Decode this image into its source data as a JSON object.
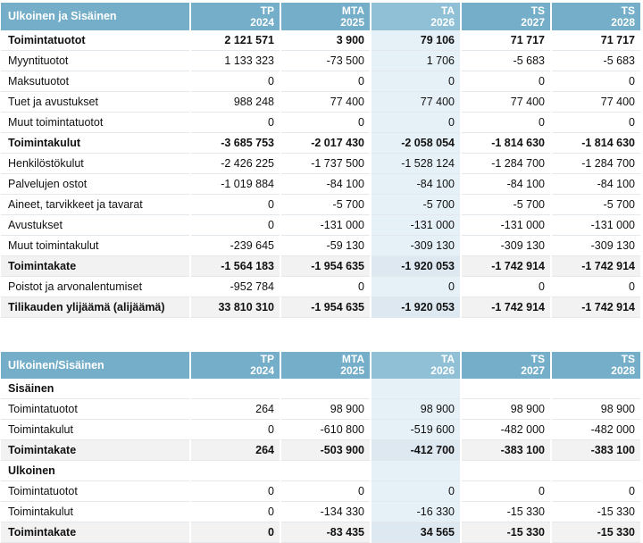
{
  "table1": {
    "header": {
      "label": "Ulkoinen ja Sisäinen",
      "columns": [
        {
          "line1": "TP",
          "line2": "2024"
        },
        {
          "line1": "MTA",
          "line2": "2025"
        },
        {
          "line1": "TA",
          "line2": "2026"
        },
        {
          "line1": "TS",
          "line2": "2027"
        },
        {
          "line1": "TS",
          "line2": "2028"
        }
      ]
    },
    "rows": [
      {
        "label": "Toimintatuotot",
        "bold": true,
        "shade": false,
        "values": [
          "2 121 571",
          "3 900",
          "79 106",
          "71 717",
          "71 717"
        ]
      },
      {
        "label": "Myyntituotot",
        "bold": false,
        "shade": false,
        "values": [
          "1 133 323",
          "-73 500",
          "1 706",
          "-5 683",
          "-5 683"
        ]
      },
      {
        "label": "Maksutuotot",
        "bold": false,
        "shade": false,
        "values": [
          "0",
          "0",
          "0",
          "0",
          "0"
        ]
      },
      {
        "label": "Tuet ja avustukset",
        "bold": false,
        "shade": false,
        "values": [
          "988 248",
          "77 400",
          "77 400",
          "77 400",
          "77 400"
        ]
      },
      {
        "label": "Muut toimintatuotot",
        "bold": false,
        "shade": false,
        "values": [
          "0",
          "0",
          "0",
          "0",
          "0"
        ]
      },
      {
        "label": "Toimintakulut",
        "bold": true,
        "shade": false,
        "values": [
          "-3 685 753",
          "-2 017 430",
          "-2 058 054",
          "-1 814 630",
          "-1 814 630"
        ]
      },
      {
        "label": "Henkilöstökulut",
        "bold": false,
        "shade": false,
        "values": [
          "-2 426 225",
          "-1 737 500",
          "-1 528 124",
          "-1 284 700",
          "-1 284 700"
        ]
      },
      {
        "label": "Palvelujen ostot",
        "bold": false,
        "shade": false,
        "values": [
          "-1 019 884",
          "-84 100",
          "-84 100",
          "-84 100",
          "-84 100"
        ]
      },
      {
        "label": "Aineet, tarvikkeet ja tavarat",
        "bold": false,
        "shade": false,
        "values": [
          "0",
          "-5 700",
          "-5 700",
          "-5 700",
          "-5 700"
        ]
      },
      {
        "label": "Avustukset",
        "bold": false,
        "shade": false,
        "values": [
          "0",
          "-131 000",
          "-131 000",
          "-131 000",
          "-131 000"
        ]
      },
      {
        "label": "Muut toimintakulut",
        "bold": false,
        "shade": false,
        "values": [
          "-239 645",
          "-59 130",
          "-309 130",
          "-309 130",
          "-309 130"
        ]
      },
      {
        "label": "Toimintakate",
        "bold": true,
        "shade": true,
        "values": [
          "-1 564 183",
          "-1 954 635",
          "-1 920 053",
          "-1 742 914",
          "-1 742 914"
        ]
      },
      {
        "label": "Poistot ja arvonalentumiset",
        "bold": false,
        "shade": false,
        "values": [
          "-952 784",
          "0",
          "0",
          "0",
          "0"
        ]
      },
      {
        "label": "Tilikauden ylijäämä (alijäämä)",
        "bold": true,
        "shade": true,
        "values": [
          "33 810 310",
          "-1 954 635",
          "-1 920 053",
          "-1 742 914",
          "-1 742 914"
        ]
      }
    ]
  },
  "table2": {
    "header": {
      "label": "Ulkoinen/Sisäinen",
      "columns": [
        {
          "line1": "TP",
          "line2": "2024"
        },
        {
          "line1": "MTA",
          "line2": "2025"
        },
        {
          "line1": "TA",
          "line2": "2026"
        },
        {
          "line1": "TS",
          "line2": "2027"
        },
        {
          "line1": "TS",
          "line2": "2028"
        }
      ]
    },
    "rows": [
      {
        "label": "Sisäinen",
        "bold": true,
        "shade": false,
        "values": [
          "",
          "",
          "",
          "",
          ""
        ]
      },
      {
        "label": "Toimintatuotot",
        "bold": false,
        "shade": false,
        "values": [
          "264",
          "98 900",
          "98 900",
          "98 900",
          "98 900"
        ]
      },
      {
        "label": "Toimintakulut",
        "bold": false,
        "shade": false,
        "values": [
          "0",
          "-610 800",
          "-519 600",
          "-482 000",
          "-482 000"
        ]
      },
      {
        "label": "Toimintakate",
        "bold": true,
        "shade": true,
        "values": [
          "264",
          "-503 900",
          "-412 700",
          "-383 100",
          "-383 100"
        ]
      },
      {
        "label": "Ulkoinen",
        "bold": true,
        "shade": false,
        "values": [
          "",
          "",
          "",
          "",
          ""
        ]
      },
      {
        "label": "Toimintatuotot",
        "bold": false,
        "shade": false,
        "values": [
          "0",
          "0",
          "0",
          "0",
          "0"
        ]
      },
      {
        "label": "Toimintakulut",
        "bold": false,
        "shade": false,
        "values": [
          "0",
          "-134 330",
          "-16 330",
          "-15 330",
          "-15 330"
        ]
      },
      {
        "label": "Toimintakate",
        "bold": true,
        "shade": true,
        "values": [
          "0",
          "-83 435",
          "34 565",
          "-15 330",
          "-15 330"
        ]
      }
    ]
  }
}
